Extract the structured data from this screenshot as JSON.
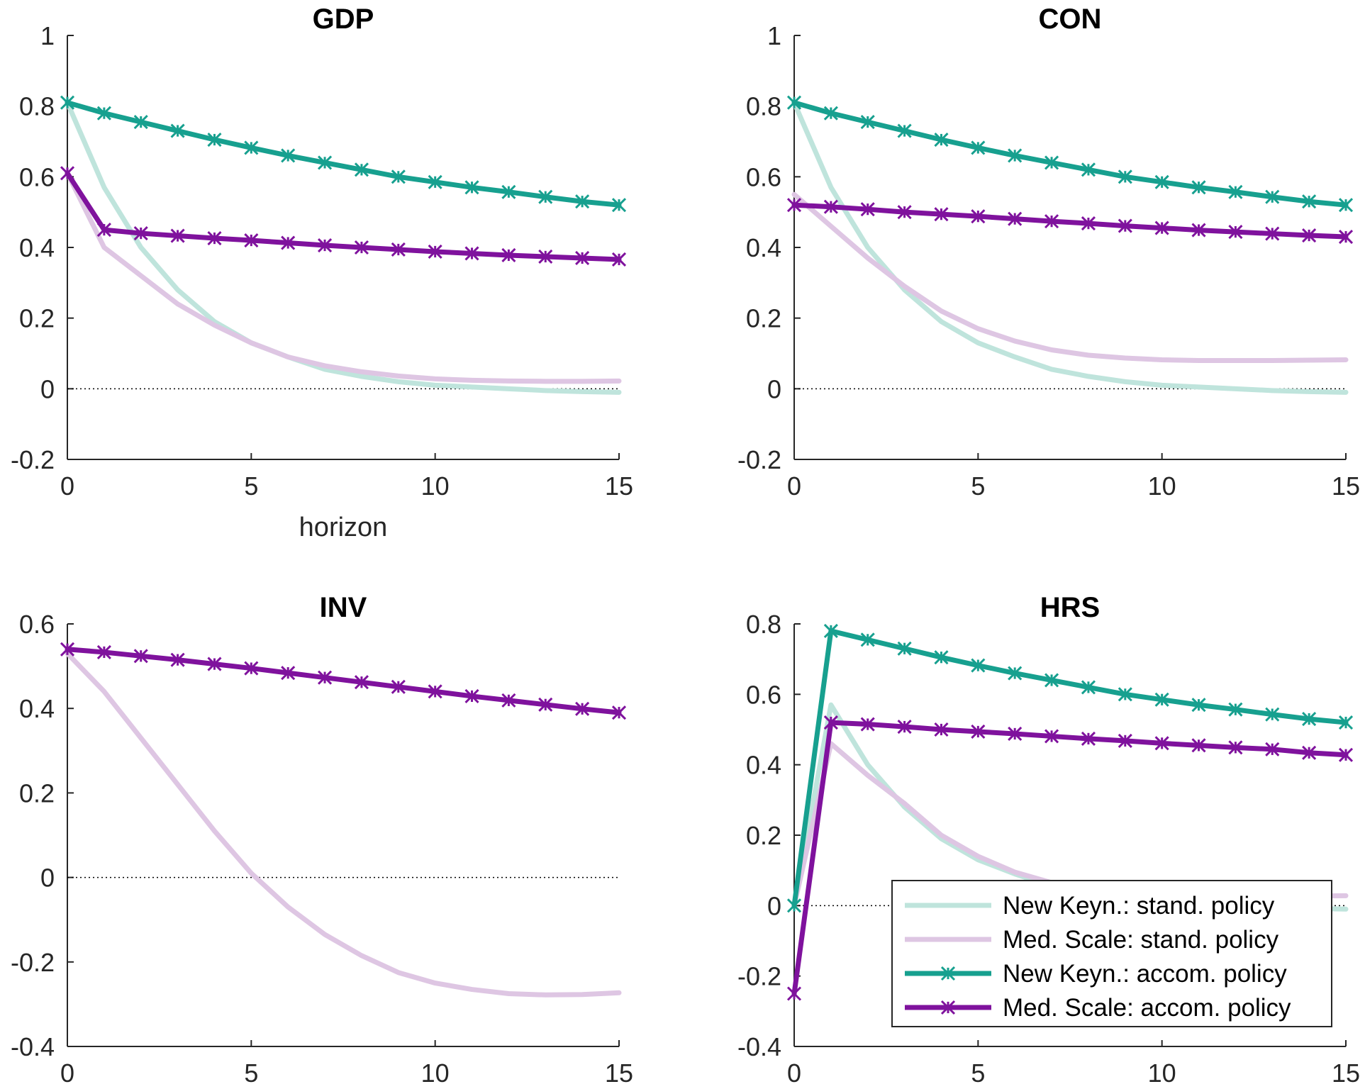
{
  "colors": {
    "nk_std": "#bfe4dc",
    "ms_std": "#dec6e3",
    "nk_acc": "#17a08f",
    "ms_acc": "#7f129d"
  },
  "legend": {
    "placement": "bottom-right of HRS panel",
    "entries": [
      "New Keyn.: stand. policy",
      "Med. Scale: stand. policy",
      "New Keyn.: accom. policy",
      "Med. Scale: accom. policy"
    ]
  },
  "chart_data": [
    {
      "type": "line",
      "title": "GDP",
      "xlabel": "horizon",
      "ylabel": "",
      "xlim": [
        0,
        15
      ],
      "ylim": [
        -0.2,
        1
      ],
      "xticks": [
        "0",
        "5",
        "10",
        "15"
      ],
      "yticks": [
        "-0.2",
        "0",
        "0.2",
        "0.4",
        "0.6",
        "0.8",
        "1"
      ],
      "zero_line": true,
      "x": [
        0,
        1,
        2,
        3,
        4,
        5,
        6,
        7,
        8,
        9,
        10,
        11,
        12,
        13,
        14,
        15
      ],
      "series": [
        {
          "name": "New Keyn.: stand. policy",
          "values": [
            0.81,
            0.57,
            0.4,
            0.28,
            0.19,
            0.13,
            0.09,
            0.055,
            0.035,
            0.02,
            0.01,
            0.005,
            0.0,
            -0.005,
            -0.008,
            -0.01
          ]
        },
        {
          "name": "Med. Scale: stand. policy",
          "values": [
            0.61,
            0.4,
            0.32,
            0.24,
            0.18,
            0.13,
            0.09,
            0.065,
            0.048,
            0.036,
            0.028,
            0.024,
            0.022,
            0.021,
            0.021,
            0.022
          ]
        },
        {
          "name": "New Keyn.: accom. policy",
          "values": [
            0.81,
            0.78,
            0.755,
            0.73,
            0.705,
            0.682,
            0.66,
            0.64,
            0.62,
            0.6,
            0.585,
            0.57,
            0.557,
            0.543,
            0.53,
            0.52
          ]
        },
        {
          "name": "Med. Scale: accom. policy",
          "values": [
            0.61,
            0.45,
            0.44,
            0.433,
            0.426,
            0.42,
            0.413,
            0.406,
            0.4,
            0.394,
            0.388,
            0.383,
            0.378,
            0.374,
            0.37,
            0.366
          ]
        }
      ]
    },
    {
      "type": "line",
      "title": "CON",
      "xlabel": "",
      "ylabel": "",
      "xlim": [
        0,
        15
      ],
      "ylim": [
        -0.2,
        1
      ],
      "xticks": [
        "0",
        "5",
        "10",
        "15"
      ],
      "yticks": [
        "-0.2",
        "0",
        "0.2",
        "0.4",
        "0.6",
        "0.8",
        "1"
      ],
      "zero_line": true,
      "x": [
        0,
        1,
        2,
        3,
        4,
        5,
        6,
        7,
        8,
        9,
        10,
        11,
        12,
        13,
        14,
        15
      ],
      "series": [
        {
          "name": "New Keyn.: stand. policy",
          "values": [
            0.81,
            0.57,
            0.4,
            0.28,
            0.19,
            0.13,
            0.09,
            0.055,
            0.035,
            0.02,
            0.01,
            0.005,
            0.0,
            -0.005,
            -0.008,
            -0.01
          ]
        },
        {
          "name": "Med. Scale: stand. policy",
          "values": [
            0.55,
            0.46,
            0.37,
            0.29,
            0.22,
            0.17,
            0.135,
            0.11,
            0.095,
            0.087,
            0.082,
            0.08,
            0.08,
            0.08,
            0.081,
            0.082
          ]
        },
        {
          "name": "New Keyn.: accom. policy",
          "values": [
            0.81,
            0.78,
            0.755,
            0.73,
            0.705,
            0.682,
            0.66,
            0.64,
            0.62,
            0.6,
            0.585,
            0.57,
            0.557,
            0.543,
            0.53,
            0.52
          ]
        },
        {
          "name": "Med. Scale: accom. policy",
          "values": [
            0.52,
            0.515,
            0.508,
            0.5,
            0.494,
            0.488,
            0.481,
            0.474,
            0.468,
            0.461,
            0.455,
            0.449,
            0.444,
            0.439,
            0.434,
            0.43
          ]
        }
      ]
    },
    {
      "type": "line",
      "title": "INV",
      "xlabel": "",
      "ylabel": "",
      "xlim": [
        0,
        15
      ],
      "ylim": [
        -0.4,
        0.6
      ],
      "xticks": [
        "0",
        "5",
        "10",
        "15"
      ],
      "yticks": [
        "-0.4",
        "-0.2",
        "0",
        "0.2",
        "0.4",
        "0.6"
      ],
      "zero_line": true,
      "x": [
        0,
        1,
        2,
        3,
        4,
        5,
        6,
        7,
        8,
        9,
        10,
        11,
        12,
        13,
        14,
        15
      ],
      "series": [
        {
          "name": "Med. Scale: stand. policy",
          "values": [
            0.53,
            0.44,
            0.33,
            0.22,
            0.11,
            0.01,
            -0.07,
            -0.135,
            -0.185,
            -0.225,
            -0.25,
            -0.265,
            -0.275,
            -0.278,
            -0.277,
            -0.273
          ]
        },
        {
          "name": "Med. Scale: accom. policy",
          "values": [
            0.54,
            0.533,
            0.524,
            0.515,
            0.505,
            0.495,
            0.484,
            0.473,
            0.462,
            0.451,
            0.44,
            0.429,
            0.419,
            0.409,
            0.399,
            0.39
          ]
        }
      ]
    },
    {
      "type": "line",
      "title": "HRS",
      "xlabel": "",
      "ylabel": "",
      "xlim": [
        0,
        15
      ],
      "ylim": [
        -0.4,
        0.8
      ],
      "xticks": [
        "0",
        "5",
        "10",
        "15"
      ],
      "yticks": [
        "-0.4",
        "-0.2",
        "0",
        "0.2",
        "0.4",
        "0.6",
        "0.8"
      ],
      "zero_line": true,
      "x": [
        0,
        1,
        2,
        3,
        4,
        5,
        6,
        7,
        8,
        9,
        10,
        11,
        12,
        13,
        14,
        15
      ],
      "series": [
        {
          "name": "New Keyn.: stand. policy",
          "values": [
            0.0,
            0.57,
            0.4,
            0.28,
            0.19,
            0.13,
            0.09,
            0.055,
            0.035,
            0.02,
            0.01,
            0.005,
            0.0,
            -0.005,
            -0.008,
            -0.01
          ]
        },
        {
          "name": "Med. Scale: stand. policy",
          "values": [
            0.0,
            0.46,
            0.37,
            0.29,
            0.2,
            0.14,
            0.095,
            0.065,
            0.048,
            0.037,
            0.03,
            0.027,
            0.026,
            0.026,
            0.027,
            0.028
          ]
        },
        {
          "name": "New Keyn.: accom. policy",
          "values": [
            0.0,
            0.78,
            0.755,
            0.73,
            0.705,
            0.682,
            0.66,
            0.64,
            0.62,
            0.6,
            0.585,
            0.57,
            0.557,
            0.543,
            0.53,
            0.52
          ]
        },
        {
          "name": "Med. Scale: accom. policy",
          "values": [
            -0.25,
            0.52,
            0.515,
            0.508,
            0.5,
            0.494,
            0.488,
            0.481,
            0.474,
            0.468,
            0.461,
            0.455,
            0.449,
            0.444,
            0.434,
            0.428
          ]
        }
      ]
    }
  ]
}
